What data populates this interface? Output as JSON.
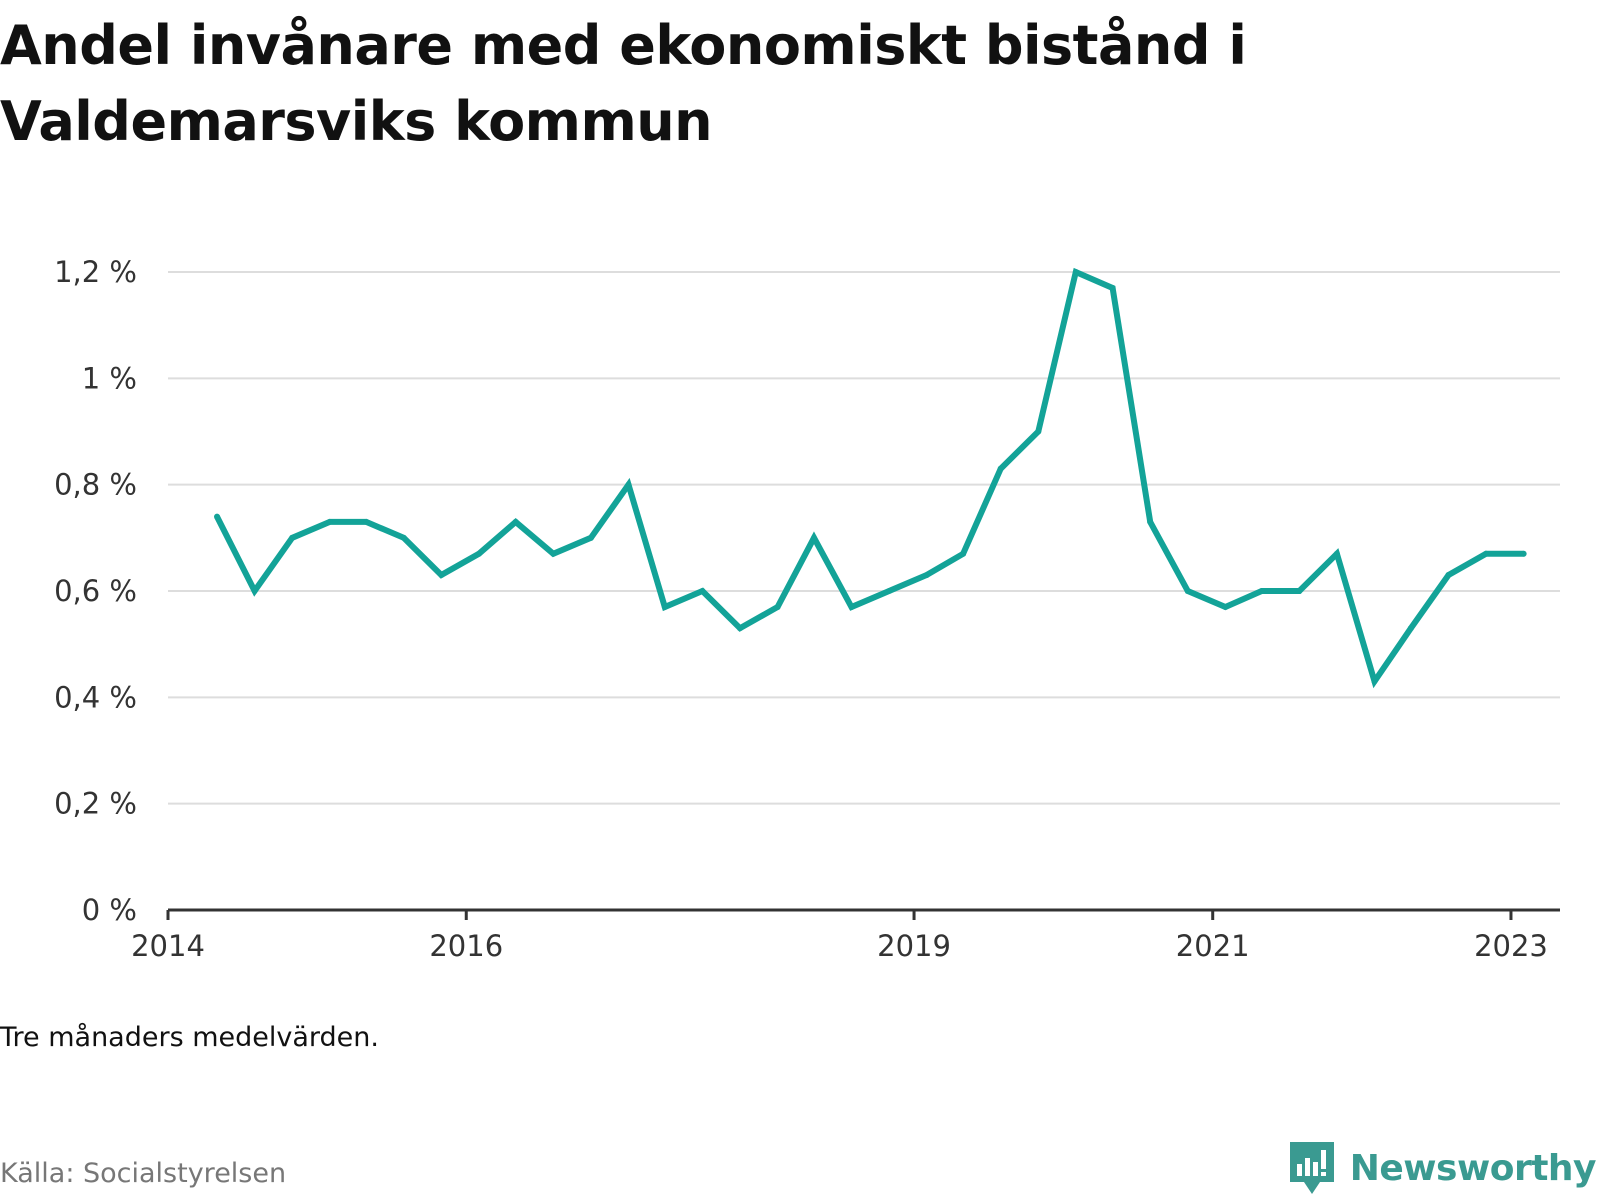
{
  "title": "Andel invånare med ekonomiskt bistånd i Valdemarsviks kommun",
  "note": "Tre månaders medelvärden.",
  "source": "Källa: Socialstyrelsen",
  "logo_text": "Newsworthy",
  "colors": {
    "line": "#13a398",
    "grid": "#dddddd",
    "axis": "#333333",
    "logo": "#3a9a91"
  },
  "chart_data": {
    "type": "line",
    "title": "Andel invånare med ekonomiskt bistånd i Valdemarsviks kommun",
    "xlabel": "",
    "ylabel": "",
    "ylim": [
      0,
      1.2
    ],
    "yticks": [
      0,
      0.2,
      0.4,
      0.6,
      0.8,
      1.0,
      1.2
    ],
    "ytick_labels": [
      "0 %",
      "0,2 %",
      "0,4 %",
      "0,6 %",
      "0,8 %",
      "1 %",
      "1,2 %"
    ],
    "xlim": [
      "2014-01-01",
      "2023-05-01"
    ],
    "xticks": [
      "2014-01-01",
      "2016-01-01",
      "2019-01-01",
      "2021-01-01",
      "2023-01-01"
    ],
    "xtick_labels": [
      "2014",
      "2016",
      "2019",
      "2021",
      "2023"
    ],
    "grid": true,
    "legend": "none",
    "series": [
      {
        "x": [
          "2014-05-01",
          "2014-08-01",
          "2014-11-01",
          "2015-02-01",
          "2015-05-01",
          "2015-08-01",
          "2015-11-01",
          "2016-02-01",
          "2016-05-01",
          "2016-08-01",
          "2016-11-01",
          "2017-02-01",
          "2017-05-01",
          "2017-08-01",
          "2017-11-01",
          "2018-02-01",
          "2018-05-01",
          "2018-08-01",
          "2018-11-01",
          "2019-02-01",
          "2019-05-01",
          "2019-08-01",
          "2019-11-01",
          "2020-02-01",
          "2020-05-01",
          "2020-08-01",
          "2020-11-01",
          "2021-02-01",
          "2021-05-01",
          "2021-08-01",
          "2021-11-01",
          "2022-02-01",
          "2022-05-01",
          "2022-08-01",
          "2022-11-01",
          "2023-02-01"
        ],
        "values": [
          0.74,
          0.6,
          0.7,
          0.73,
          0.73,
          0.7,
          0.63,
          0.67,
          0.73,
          0.67,
          0.7,
          0.8,
          0.57,
          0.6,
          0.53,
          0.57,
          0.7,
          0.57,
          0.6,
          0.63,
          0.67,
          0.83,
          0.9,
          1.2,
          1.17,
          0.73,
          0.6,
          0.57,
          0.6,
          0.6,
          0.67,
          0.43,
          0.53,
          0.63,
          0.67,
          0.67
        ]
      }
    ]
  }
}
